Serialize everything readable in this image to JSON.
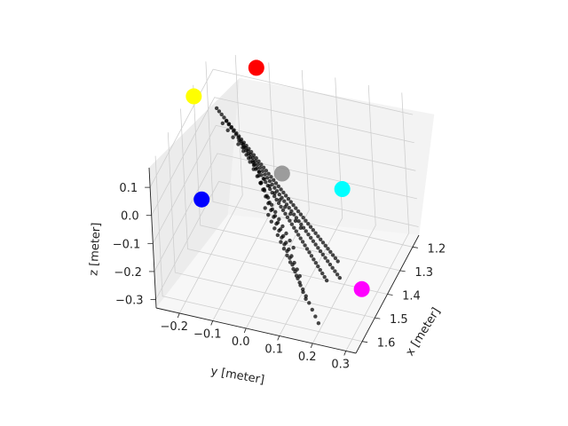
{
  "chart_data": {
    "type": "scatter3d",
    "title": "",
    "axes": {
      "x": {
        "label": "x [meter]",
        "ticks": [
          "1.2",
          "1.3",
          "1.4",
          "1.5",
          "1.6"
        ],
        "range": [
          1.15,
          1.65
        ]
      },
      "y": {
        "label": "y [meter]",
        "ticks": [
          "−0.2",
          "−0.1",
          "0.0",
          "0.1",
          "0.2",
          "0.3"
        ],
        "range": [
          -0.27,
          0.33
        ]
      },
      "z": {
        "label": "z [meter]",
        "ticks": [
          "0.1",
          "0.0",
          "−0.1",
          "−0.2",
          "−0.3"
        ],
        "range": [
          -0.33,
          0.17
        ]
      }
    },
    "grid": true,
    "legend": "none",
    "series": [
      {
        "role": "point-cloud",
        "color": "#000000",
        "lines": [
          {
            "from": [
              1.21,
              -0.24,
              0.02
            ],
            "to": [
              1.58,
              0.26,
              -0.08
            ],
            "count": 50
          },
          {
            "from": [
              1.24,
              -0.2,
              0.01
            ],
            "to": [
              1.62,
              0.28,
              -0.1
            ],
            "count": 48
          },
          {
            "from": [
              1.28,
              -0.14,
              -0.02
            ],
            "to": [
              1.62,
              0.24,
              -0.12
            ],
            "count": 40
          },
          {
            "from": [
              1.22,
              -0.22,
              -0.02
            ],
            "to": [
              1.36,
              0.06,
              -0.2
            ],
            "count": 16
          },
          {
            "from": [
              1.25,
              -0.16,
              -0.04
            ],
            "to": [
              1.42,
              0.06,
              -0.22
            ],
            "count": 16
          },
          {
            "from": [
              1.3,
              -0.1,
              -0.06
            ],
            "to": [
              1.48,
              0.1,
              -0.26
            ],
            "count": 18
          },
          {
            "from": [
              1.35,
              -0.06,
              -0.08
            ],
            "to": [
              1.54,
              0.14,
              -0.28
            ],
            "count": 18
          },
          {
            "from": [
              1.42,
              -0.02,
              -0.1
            ],
            "to": [
              1.6,
              0.2,
              -0.3
            ],
            "count": 18
          }
        ]
      },
      {
        "role": "markers",
        "points": [
          {
            "color": "#ff0000",
            "xyz": [
              1.17,
              -0.13,
              0.16
            ]
          },
          {
            "color": "#ffff00",
            "xyz": [
              1.3,
              -0.27,
              0.13
            ]
          },
          {
            "color": "#00ffff",
            "xyz": [
              1.45,
              0.23,
              0.06
            ]
          },
          {
            "color": "#0000ff",
            "xyz": [
              1.4,
              -0.22,
              -0.14
            ]
          },
          {
            "color": "#ff00ff",
            "xyz": [
              1.56,
              0.32,
              -0.18
            ]
          },
          {
            "color": "#7f7f7f",
            "xyz": [
              1.38,
              0.02,
              0.0
            ]
          }
        ]
      }
    ]
  }
}
